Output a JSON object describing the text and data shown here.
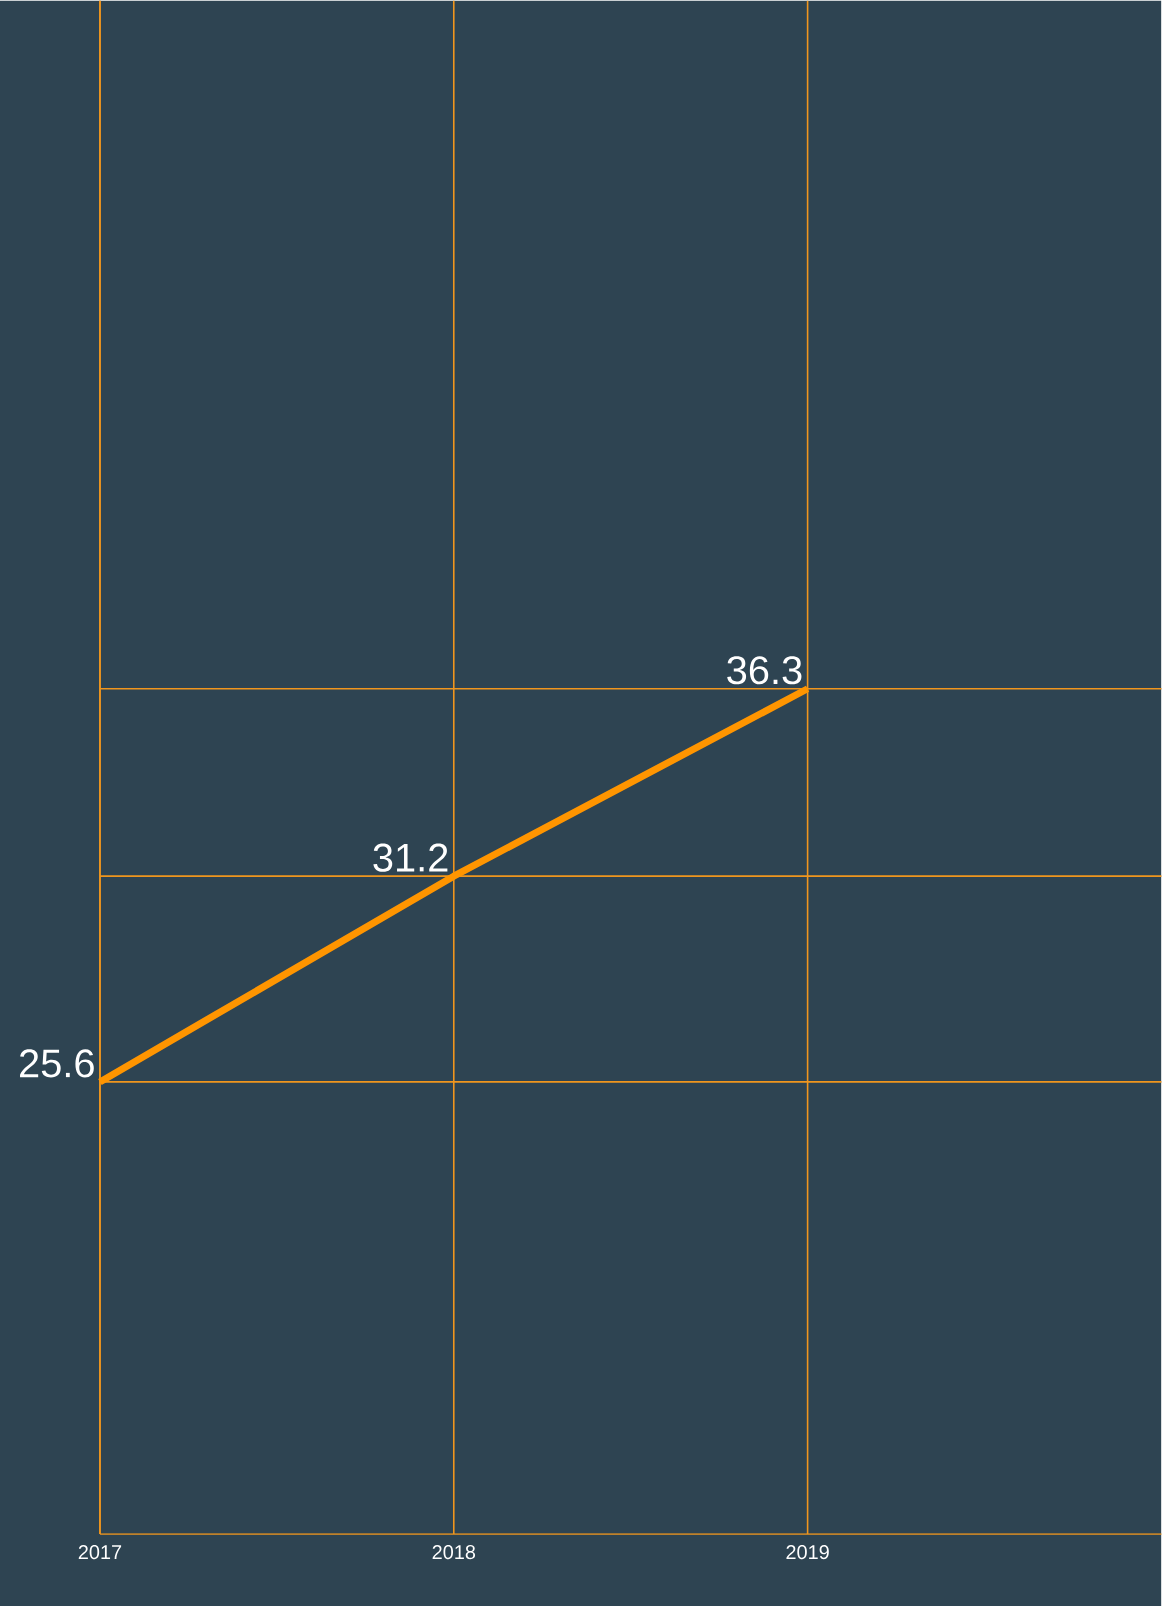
{
  "chart_data": {
    "type": "line",
    "categories": [
      "2017",
      "2018",
      "2019"
    ],
    "series": [
      {
        "color": "#ff9500",
        "values": [
          25.6,
          31.2,
          36.3
        ]
      }
    ],
    "data_labels": true,
    "grid": true,
    "marker": "none",
    "line_style": "solid"
  }
}
